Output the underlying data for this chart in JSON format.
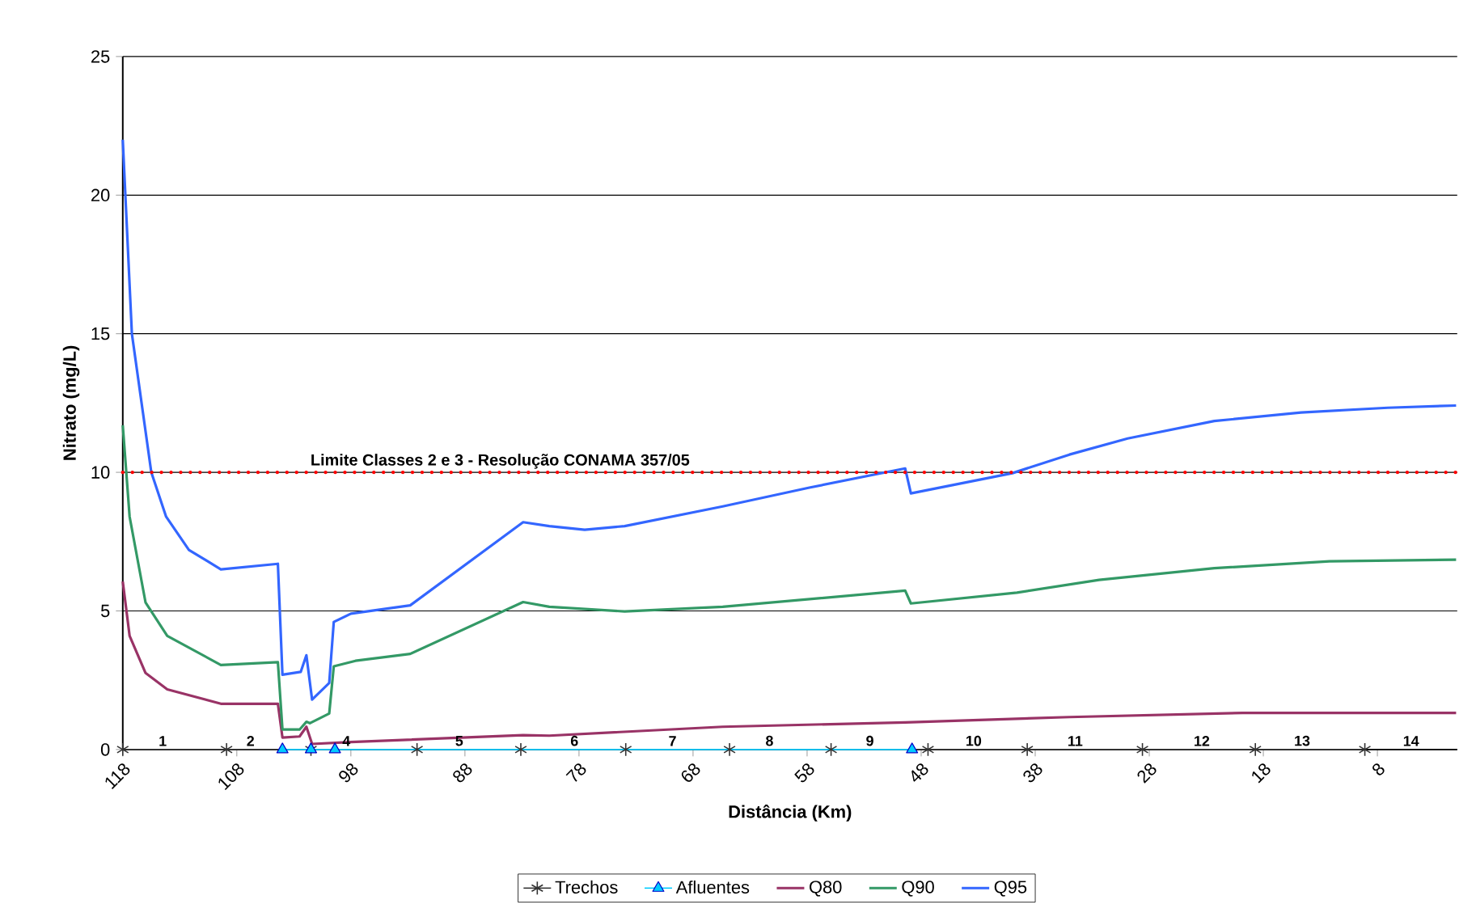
{
  "chart_data": {
    "type": "line",
    "xlabel": "Distância (Km)",
    "ylabel": "Nitrato (mg/L)",
    "xlim": [
      118,
      1
    ],
    "ylim": [
      0,
      25
    ],
    "xticks": [
      118,
      108,
      98,
      88,
      78,
      68,
      58,
      48,
      38,
      28,
      18,
      8
    ],
    "yticks": [
      0,
      5,
      10,
      15,
      20,
      25
    ],
    "grid": "y",
    "legend": "bottom",
    "series": [
      {
        "name": "Trechos",
        "color": "#333333",
        "marker": "cross",
        "x": [
          118,
          108.9,
          101.5,
          92.2,
          83.1,
          73.9,
          64.8,
          55.9,
          47.4,
          38.7,
          28.6,
          18.7,
          9.1
        ],
        "values": [
          0,
          0,
          0,
          0,
          0,
          0,
          0,
          0,
          0,
          0,
          0,
          0,
          0
        ]
      },
      {
        "name": "Afluentes",
        "color": "#00ccff",
        "marker": "triangle",
        "x": [
          104.0,
          101.5,
          99.4,
          48.8
        ],
        "values": [
          0,
          0,
          0,
          0
        ]
      },
      {
        "name": "Q80",
        "color": "#993366",
        "marker": "none",
        "x": [
          118,
          117.4,
          116.0,
          114.1,
          109.4,
          104.4,
          104.0,
          102.5,
          101.9,
          101.4,
          98.0,
          82.9,
          80.6,
          65.4,
          49.4,
          35.0,
          19.8,
          1.1
        ],
        "values": [
          6.06,
          4.1,
          2.76,
          2.17,
          1.65,
          1.65,
          0.43,
          0.47,
          0.82,
          0.2,
          0.27,
          0.52,
          0.5,
          0.82,
          0.98,
          1.17,
          1.32,
          1.32
        ]
      },
      {
        "name": "Q90",
        "color": "#339966",
        "marker": "none",
        "x": [
          118,
          117.4,
          116.0,
          114.1,
          109.4,
          104.4,
          104.0,
          102.5,
          101.9,
          101.6,
          99.9,
          99.5,
          97.6,
          92.8,
          82.9,
          80.6,
          74.0,
          65.4,
          49.4,
          48.9,
          39.6,
          32.4,
          22.3,
          12.2,
          1.1
        ],
        "values": [
          11.7,
          8.4,
          5.3,
          4.1,
          3.05,
          3.15,
          0.72,
          0.72,
          1.0,
          0.95,
          1.3,
          3.0,
          3.2,
          3.45,
          5.32,
          5.15,
          4.98,
          5.15,
          5.73,
          5.27,
          5.66,
          6.12,
          6.54,
          6.79,
          6.85
        ]
      },
      {
        "name": "Q95",
        "color": "#3366ff",
        "marker": "none",
        "x": [
          118,
          117.2,
          115.5,
          114.2,
          112.2,
          109.4,
          104.4,
          104.0,
          102.4,
          101.9,
          101.4,
          99.9,
          99.5,
          98.0,
          92.8,
          82.9,
          80.6,
          77.5,
          74.0,
          65.4,
          57.8,
          49.4,
          48.9,
          40.0,
          35.0,
          29.9,
          22.3,
          14.7,
          7.1,
          1.1
        ],
        "values": [
          22.0,
          15.0,
          10.0,
          8.4,
          7.2,
          6.5,
          6.7,
          2.7,
          2.8,
          3.4,
          1.8,
          2.4,
          4.6,
          4.9,
          5.2,
          8.2,
          8.06,
          7.93,
          8.06,
          8.77,
          9.45,
          10.14,
          9.24,
          9.97,
          10.64,
          11.22,
          11.85,
          12.16,
          12.33,
          12.41
        ]
      }
    ],
    "ref_lines": [
      {
        "axis": "y",
        "value": 10,
        "label": "Limite Classes 2 e 3 - Resolução CONAMA 357/05",
        "color": "#ff0000",
        "line_style": "dotted"
      }
    ],
    "annotations": [
      {
        "text": "1",
        "x": 114.5,
        "y": 0
      },
      {
        "text": "2",
        "x": 106.8,
        "y": 0
      },
      {
        "text": "4",
        "x": 98.4,
        "y": 0
      },
      {
        "text": "5",
        "x": 88.5,
        "y": 0
      },
      {
        "text": "6",
        "x": 78.4,
        "y": 0
      },
      {
        "text": "7",
        "x": 69.8,
        "y": 0
      },
      {
        "text": "8",
        "x": 61.3,
        "y": 0
      },
      {
        "text": "9",
        "x": 52.5,
        "y": 0
      },
      {
        "text": "10",
        "x": 43.4,
        "y": 0
      },
      {
        "text": "11",
        "x": 34.5,
        "y": 0
      },
      {
        "text": "12",
        "x": 23.4,
        "y": 0
      },
      {
        "text": "13",
        "x": 14.6,
        "y": 0
      },
      "14"
    ]
  }
}
